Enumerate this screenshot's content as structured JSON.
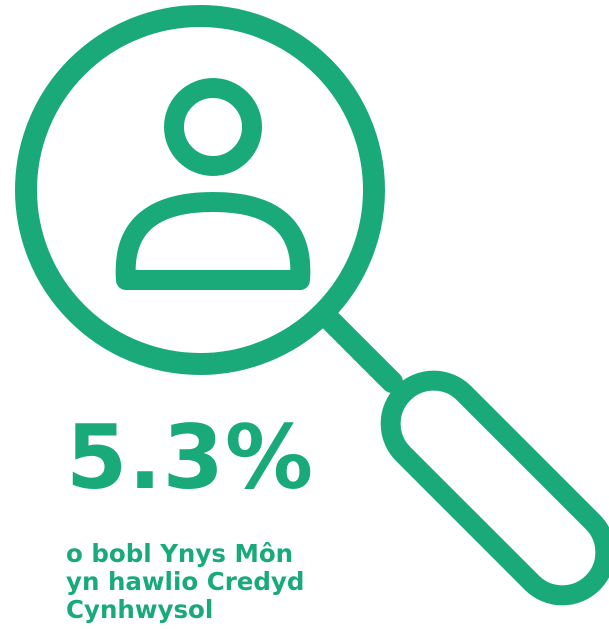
{
  "theme": {
    "accent": "#1aaa7a",
    "background": "#ffffff"
  },
  "icon": {
    "name": "magnifying-glass-person-icon"
  },
  "stat": {
    "value": "5.3%",
    "caption_lines": [
      "o bobl Ynys Môn",
      "yn hawlio Credyd",
      "Cynhwysol"
    ]
  }
}
